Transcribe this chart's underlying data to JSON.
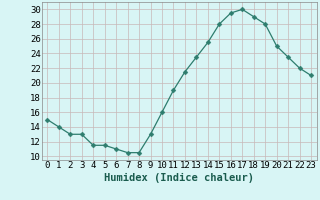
{
  "x": [
    0,
    1,
    2,
    3,
    4,
    5,
    6,
    7,
    8,
    9,
    10,
    11,
    12,
    13,
    14,
    15,
    16,
    17,
    18,
    19,
    20,
    21,
    22,
    23
  ],
  "y": [
    15.0,
    14.0,
    13.0,
    13.0,
    11.5,
    11.5,
    11.0,
    10.5,
    10.5,
    13.0,
    16.0,
    19.0,
    21.5,
    23.5,
    25.5,
    28.0,
    29.5,
    30.0,
    29.0,
    28.0,
    25.0,
    23.5,
    22.0,
    21.0
  ],
  "line_color": "#2e7d6e",
  "marker": "D",
  "marker_size": 2.5,
  "bg_color": "#d8f5f5",
  "grid_color": "#c8b8b8",
  "xlabel": "Humidex (Indice chaleur)",
  "ylabel_ticks": [
    10,
    12,
    14,
    16,
    18,
    20,
    22,
    24,
    26,
    28,
    30
  ],
  "ylim": [
    9.5,
    31.0
  ],
  "xlim": [
    -0.5,
    23.5
  ],
  "xlabel_fontsize": 7.5,
  "tick_fontsize": 6.5
}
